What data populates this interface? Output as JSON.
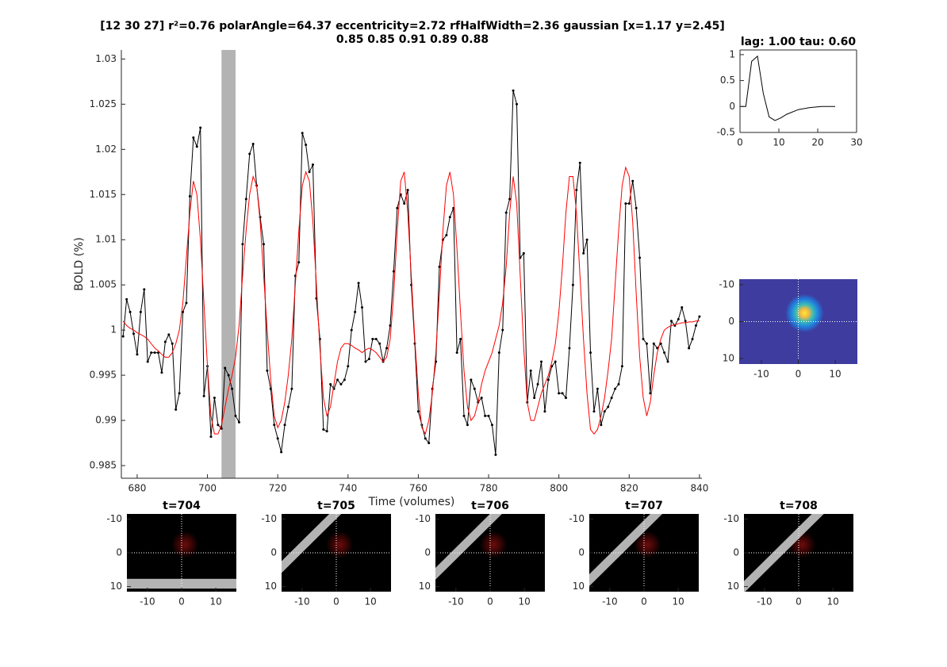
{
  "chart_data": [
    {
      "type": "line",
      "title": "[12 30 27] r²=0.76 polarAngle=64.37 eccentricity=2.72 rfHalfWidth=2.36 gaussian [x=1.17 y=2.45]",
      "subtitle": "0.85 0.85 0.91 0.89 0.88",
      "x_label": "Time (volumes)",
      "y_label": "BOLD (%)",
      "xlim": [
        675.5,
        840.7
      ],
      "ylim": [
        0.9836,
        1.031
      ],
      "xticks": [
        680,
        700,
        720,
        740,
        760,
        780,
        800,
        820,
        840
      ],
      "yticks": [
        0.985,
        0.99,
        0.995,
        1,
        1.005,
        1.01,
        1.015,
        1.02,
        1.025,
        1.03
      ],
      "span": [
        704,
        708
      ],
      "span_color": "#b3b3b3",
      "x": [
        676,
        677,
        678,
        679,
        680,
        681,
        682,
        683,
        684,
        685,
        686,
        687,
        688,
        689,
        690,
        691,
        692,
        693,
        694,
        695,
        696,
        697,
        698,
        699,
        700,
        701,
        702,
        703,
        704,
        705,
        706,
        707,
        708,
        709,
        710,
        711,
        712,
        713,
        714,
        715,
        716,
        717,
        718,
        719,
        720,
        721,
        722,
        723,
        724,
        725,
        726,
        727,
        728,
        729,
        730,
        731,
        732,
        733,
        734,
        735,
        736,
        737,
        738,
        739,
        740,
        741,
        742,
        743,
        744,
        745,
        746,
        747,
        748,
        749,
        750,
        751,
        752,
        753,
        754,
        755,
        756,
        757,
        758,
        759,
        760,
        761,
        762,
        763,
        764,
        765,
        766,
        767,
        768,
        769,
        770,
        771,
        772,
        773,
        774,
        775,
        776,
        777,
        778,
        779,
        780,
        781,
        782,
        783,
        784,
        785,
        786,
        787,
        788,
        789,
        790,
        791,
        792,
        793,
        794,
        795,
        796,
        797,
        798,
        799,
        800,
        801,
        802,
        803,
        804,
        805,
        806,
        807,
        808,
        809,
        810,
        811,
        812,
        813,
        814,
        815,
        816,
        817,
        818,
        819,
        820,
        821,
        822,
        823,
        824,
        825,
        826,
        827,
        828,
        829,
        830,
        831,
        832,
        833,
        834,
        835,
        836,
        837,
        838,
        839,
        840
      ],
      "series": [
        {
          "color": "#000000",
          "markers": true,
          "values": [
            0.9993,
            1.0034,
            1.002,
            0.9996,
            0.9973,
            1.002,
            1.0045,
            0.9965,
            0.9975,
            0.9975,
            0.9975,
            0.9953,
            0.9987,
            0.9995,
            0.9985,
            0.9912,
            0.993,
            1.002,
            1.003,
            1.0148,
            1.0213,
            1.0203,
            1.0224,
            0.9927,
            0.996,
            0.9882,
            0.9925,
            0.9895,
            0.9891,
            0.9958,
            0.995,
            0.9935,
            0.9905,
            0.9898,
            1.0095,
            1.0145,
            1.0195,
            1.0206,
            1.016,
            1.0125,
            1.0095,
            0.9955,
            0.9935,
            0.9895,
            0.988,
            0.9865,
            0.9895,
            0.9915,
            0.9935,
            1.006,
            1.0075,
            1.0218,
            1.0205,
            1.0175,
            1.0183,
            1.0035,
            0.999,
            0.989,
            0.9888,
            0.994,
            0.9935,
            0.9945,
            0.994,
            0.9945,
            0.996,
            1.0,
            1.002,
            1.0052,
            1.0025,
            0.9965,
            0.9968,
            0.999,
            0.999,
            0.9985,
            0.9965,
            0.998,
            1.0005,
            1.0065,
            1.0135,
            1.015,
            1.014,
            1.0155,
            1.005,
            0.9985,
            0.991,
            0.9895,
            0.988,
            0.9875,
            0.9935,
            0.9965,
            1.007,
            1.01,
            1.0105,
            1.0125,
            1.0135,
            0.9975,
            0.999,
            0.9905,
            0.9895,
            0.9945,
            0.9935,
            0.992,
            0.9925,
            0.9905,
            0.9905,
            0.9895,
            0.9862,
            0.9975,
            1.0,
            1.013,
            1.0145,
            1.0265,
            1.025,
            1.008,
            1.0085,
            0.992,
            0.9955,
            0.9925,
            0.994,
            0.9965,
            0.991,
            0.9945,
            0.996,
            0.9965,
            0.993,
            0.993,
            0.9925,
            0.998,
            1.005,
            1.0155,
            1.0185,
            1.0085,
            1.01,
            0.9975,
            0.991,
            0.9935,
            0.9895,
            0.991,
            0.9915,
            0.9925,
            0.9935,
            0.994,
            0.996,
            1.014,
            1.014,
            1.0165,
            1.0135,
            1.008,
            0.999,
            0.9985,
            0.993,
            0.9985,
            0.998,
            0.9985,
            0.9975,
            0.9965,
            1.001,
            1.0005,
            1.0012,
            1.0025,
            1.001,
            0.998,
            0.999,
            1.0005,
            1.0015
          ]
        },
        {
          "color": "#ff0000",
          "markers": false,
          "values": [
            1.001,
            1.0005,
            1.0002,
            1.0,
            0.9997,
            0.9995,
            0.9993,
            0.999,
            0.9985,
            0.998,
            0.9977,
            0.9973,
            0.997,
            0.997,
            0.9975,
            0.9985,
            1.0,
            1.003,
            1.008,
            1.013,
            1.0165,
            1.015,
            1.01,
            1.003,
            0.996,
            0.9905,
            0.9885,
            0.9885,
            0.9895,
            0.9915,
            0.9935,
            0.995,
            0.997,
            1.0005,
            1.006,
            1.011,
            1.015,
            1.017,
            1.016,
            1.012,
            1.006,
            1.0,
            0.9945,
            0.9905,
            0.9892,
            0.99,
            0.992,
            0.995,
            0.999,
            1.005,
            1.011,
            1.016,
            1.0175,
            1.0165,
            1.012,
            1.005,
            0.998,
            0.9925,
            0.9905,
            0.9915,
            0.994,
            0.9965,
            0.998,
            0.9985,
            0.9985,
            0.9983,
            0.998,
            0.9978,
            0.9975,
            0.9978,
            0.998,
            0.9978,
            0.9975,
            0.997,
            0.9965,
            0.997,
            0.999,
            1.004,
            1.011,
            1.0165,
            1.0175,
            1.013,
            1.006,
            0.999,
            0.993,
            0.9892,
            0.9885,
            0.99,
            0.993,
            0.9975,
            1.004,
            1.011,
            1.016,
            1.0175,
            1.015,
            1.009,
            1.002,
            0.9955,
            0.9915,
            0.99,
            0.9905,
            0.992,
            0.994,
            0.9955,
            0.9965,
            0.9975,
            0.999,
            1.0005,
            1.003,
            1.007,
            1.013,
            1.017,
            1.014,
            1.006,
            0.998,
            0.992,
            0.99,
            0.99,
            0.9915,
            0.993,
            0.994,
            0.995,
            0.9965,
            0.9985,
            1.002,
            1.007,
            1.013,
            1.017,
            1.017,
            1.013,
            1.006,
            0.999,
            0.993,
            0.989,
            0.9885,
            0.989,
            0.9905,
            0.9925,
            0.9955,
            0.999,
            1.005,
            1.011,
            1.016,
            1.018,
            1.017,
            1.012,
            1.004,
            0.997,
            0.9925,
            0.9905,
            0.992,
            0.995,
            0.9975,
            0.999,
            1.0,
            1.0003,
            1.0005,
            1.0006,
            1.0007,
            1.0008,
            1.0008,
            1.0009,
            1.0009,
            1.001,
            1.001
          ]
        }
      ]
    },
    {
      "type": "line",
      "title": "lag: 1.00 tau: 0.60",
      "box": true,
      "xlim": [
        0,
        30
      ],
      "ylim": [
        -0.5,
        1.09
      ],
      "xticks": [
        0,
        10,
        20,
        30
      ],
      "yticks": [
        -0.5,
        0,
        0.5,
        1
      ],
      "x": [
        0,
        1.5,
        3,
        4.5,
        6,
        7.5,
        9,
        10.5,
        12,
        15,
        18,
        21,
        24.5
      ],
      "series": [
        {
          "color": "#000000",
          "markers": false,
          "values": [
            0,
            0,
            0.87,
            0.97,
            0.25,
            -0.2,
            -0.27,
            -0.22,
            -0.15,
            -0.06,
            -0.02,
            0,
            0
          ]
        }
      ]
    },
    {
      "type": "image",
      "colormap": "parula",
      "xlim": [
        -16,
        16
      ],
      "ylim": [
        -11.5,
        11.5
      ],
      "y_reversed": true,
      "xticks": [
        -10,
        0,
        10
      ],
      "yticks": [
        -10,
        0,
        10
      ]
    },
    {
      "type": "image",
      "colormap": "stimulus",
      "title": "t=704",
      "xlim": [
        -16,
        16
      ],
      "ylim": [
        -11.5,
        11.5
      ],
      "y_reversed": true,
      "xticks": [
        -10,
        0,
        10
      ],
      "yticks": [
        -10,
        0,
        10
      ]
    },
    {
      "type": "image",
      "colormap": "stimulus",
      "title": "t=705",
      "xlim": [
        -16,
        16
      ],
      "ylim": [
        -11.5,
        11.5
      ],
      "y_reversed": true,
      "xticks": [
        -10,
        0,
        10
      ],
      "yticks": [
        -10,
        0,
        10
      ]
    },
    {
      "type": "image",
      "colormap": "stimulus",
      "title": "t=706",
      "xlim": [
        -16,
        16
      ],
      "ylim": [
        -11.5,
        11.5
      ],
      "y_reversed": true,
      "xticks": [
        -10,
        0,
        10
      ],
      "yticks": [
        -10,
        0,
        10
      ]
    },
    {
      "type": "image",
      "colormap": "stimulus",
      "title": "t=707",
      "xlim": [
        -16,
        16
      ],
      "ylim": [
        -11.5,
        11.5
      ],
      "y_reversed": true,
      "xticks": [
        -10,
        0,
        10
      ],
      "yticks": [
        -10,
        0,
        10
      ]
    },
    {
      "type": "image",
      "colormap": "stimulus",
      "title": "t=708",
      "xlim": [
        -16,
        16
      ],
      "ylim": [
        -11.5,
        11.5
      ],
      "y_reversed": true,
      "xticks": [
        -10,
        0,
        10
      ],
      "yticks": [
        -10,
        0,
        10
      ]
    }
  ]
}
